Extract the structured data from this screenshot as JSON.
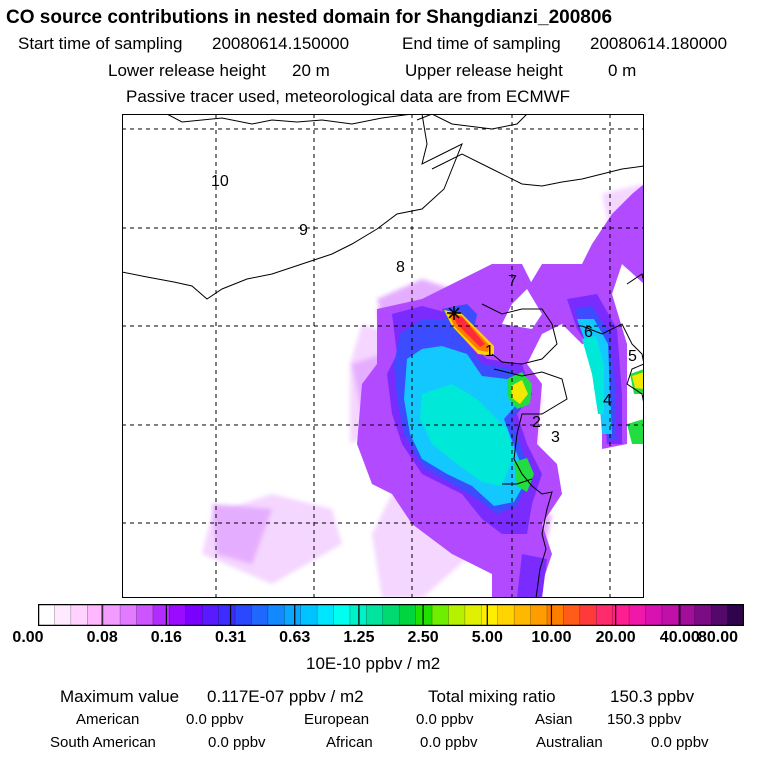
{
  "header": {
    "title": "CO  source contributions in nested domain for Shangdianzi_200806",
    "start_label": "Start time of sampling",
    "start_value": "20080614.150000",
    "end_label": "End time of sampling",
    "end_value": "20080614.180000",
    "lower_label": "Lower release height",
    "lower_value": "20 m",
    "upper_label": "Upper release height",
    "upper_value": "0 m",
    "note": "Passive tracer used, meteorological data are from ECMWF"
  },
  "map": {
    "region_labels": [
      "10",
      "9",
      "8",
      "7",
      "6",
      "5",
      "4",
      "3",
      "2",
      "1"
    ]
  },
  "colorbar": {
    "colors": [
      "#ffffff",
      "#ffe9ff",
      "#ffd2ff",
      "#ffb8ff",
      "#f29cff",
      "#e27bff",
      "#cc55ff",
      "#b22cff",
      "#9a0cff",
      "#7a00ff",
      "#5a1aff",
      "#3c2cff",
      "#2c48ff",
      "#1f68ff",
      "#1488ff",
      "#0aa6ff",
      "#00c4ff",
      "#00e6ff",
      "#00ffee",
      "#00f0c8",
      "#00e4a0",
      "#00da70",
      "#00d540",
      "#20e000",
      "#70ee00",
      "#b6f200",
      "#e0f000",
      "#ffee00",
      "#ffd400",
      "#ffb800",
      "#ff9c00",
      "#ff7e00",
      "#ff5c1a",
      "#ff3a3a",
      "#ff2b6b",
      "#ff1e8f",
      "#f018a8",
      "#d812b0",
      "#c010a8",
      "#a00e9a",
      "#7a0c84",
      "#54086a",
      "#30044c"
    ],
    "ticks": [
      "0.00",
      "0.08",
      "0.16",
      "0.31",
      "0.63",
      "1.25",
      "2.50",
      "5.00",
      "10.00",
      "20.00",
      "40.00",
      "80.00"
    ],
    "units": "10E-10 ppbv / m2"
  },
  "stats": {
    "max_label": "Maximum value",
    "max_value": "0.117E-07 ppbv / m2",
    "total_label": "Total mixing ratio",
    "total_value": "150.3 ppbv",
    "american_label": "American",
    "american_value": "0.0 ppbv",
    "european_label": "European",
    "european_value": "0.0 ppbv",
    "asian_label": "Asian",
    "asian_value": "150.3 ppbv",
    "south_american_label": "South American",
    "south_american_value": "0.0 ppbv",
    "african_label": "African",
    "african_value": "0.0 ppbv",
    "australian_label": "Australian",
    "australian_value": "0.0 ppbv"
  }
}
